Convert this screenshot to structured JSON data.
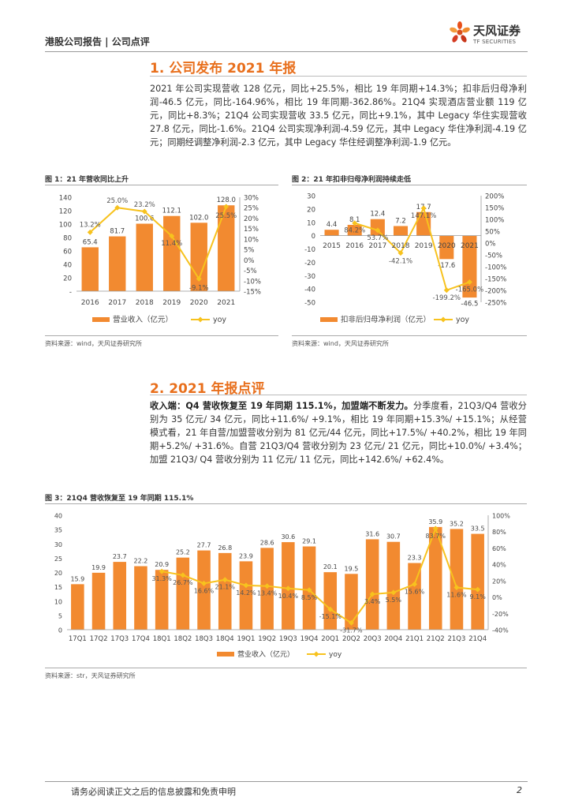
{
  "header": {
    "left": "港股公司报告 | 公司点评",
    "logo_cn": "天风证券",
    "logo_en": "TF SECURITIES"
  },
  "section1": {
    "title": "1. 公司发布 2021 年报",
    "body": "2021 年公司实现营收 128 亿元，同比+25.5%，相比 19 年同期+14.3%；扣非后归母净利润-46.5 亿元，同比-164.96%，相比 19 年同期-362.86%。21Q4 实现酒店营业额 119 亿元，同比+8.3%；21Q4 公司实现营收 33.5 亿元，同比+9.1%，其中 Legacy 华住实现营收 27.8 亿元，同比-1.6%。21Q4 公司实现净利润-4.59 亿元，其中 Legacy 华住净利润-4.19 亿元；同期经调整净利润-2.3 亿元，其中 Legacy 华住经调整净利润-1.9 亿元。"
  },
  "figure1": {
    "title": "图 1：21 年营收同比上升",
    "source": "资料来源：wind，天风证券研究所"
  },
  "figure2": {
    "title": "图 2：21 年扣非归母净利润持续走低",
    "source": "资料来源：wind，天风证券研究所"
  },
  "section2": {
    "title": "2. 2021 年报点评",
    "lead": "收入端：Q4 营收恢复至 19 年同期 115.1%，加盟端不断发力。",
    "body": "分季度看，21Q3/Q4 营收分别为 35 亿元/ 34 亿元，同比+11.6%/ +9.1%，相比 19 年同期+15.3%/ +15.1%；从经营模式看，21 年自营/加盟营收分别为 81 亿元/44 亿元，同比+17.5%/ +40.2%，相比 19 年同期+5.2%/ +31.6%。自营 21Q3/Q4 营收分别为 23 亿元/ 21 亿元，同比+10.0%/ +3.4%；加盟 21Q3/ Q4 营收分别为 11 亿元/ 11 亿元，同比+142.6%/ +62.4%。"
  },
  "figure3": {
    "title": "图 3：21Q4 营收恢复至 19 年同期 115.1%",
    "source": "资料来源：str，天风证券研究所"
  },
  "footer": {
    "disclaimer": "请务必阅读正文之后的信息披露和免责申明",
    "page": "2"
  },
  "colors": {
    "orange": "#f28a30",
    "yellow": "#f7c21e",
    "title_orange": "#e86f1c"
  },
  "chart_data": [
    {
      "type": "bar",
      "name": "revenue-annual",
      "categories": [
        "2016",
        "2017",
        "2018",
        "2019",
        "2020",
        "2021"
      ],
      "series": [
        {
          "name": "营业收入（亿元）",
          "kind": "bar",
          "axis": "left",
          "values": [
            65.4,
            81.7,
            100.6,
            112.1,
            102.0,
            128.0
          ]
        },
        {
          "name": "yoy",
          "kind": "line",
          "axis": "right",
          "values": [
            13.2,
            25.0,
            23.2,
            11.4,
            -9.1,
            25.5
          ]
        }
      ],
      "value_labels": [
        "65.4",
        "81.7",
        "100.6",
        "112.1",
        "102.0",
        "128.0"
      ],
      "line_labels": [
        "13.2%",
        "25.0%",
        "23.2%",
        "11.4%",
        "-9.1%",
        "25.5%"
      ],
      "ylim_left": [
        0,
        140
      ],
      "ylim_right": [
        -15,
        30
      ],
      "yticks_left": [
        "140",
        "120",
        "100",
        "80",
        "60",
        "40",
        "20",
        "-"
      ],
      "yticks_right": [
        "30%",
        "25%",
        "20%",
        "15%",
        "10%",
        "5%",
        "0%",
        "-5%",
        "-10%",
        "-15%"
      ]
    },
    {
      "type": "bar",
      "name": "net-profit-annual",
      "categories": [
        "2015",
        "2016",
        "2017",
        "2018",
        "2019",
        "2020",
        "2021"
      ],
      "series": [
        {
          "name": "扣非后归母净利润（亿元）",
          "kind": "bar",
          "axis": "left",
          "values": [
            4.4,
            8.1,
            12.4,
            7.2,
            17.7,
            -17.6,
            -46.5
          ]
        },
        {
          "name": "yoy",
          "kind": "line",
          "axis": "right",
          "values": [
            null,
            84.2,
            53.7,
            -42.1,
            147.1,
            -199.2,
            -165.0
          ]
        }
      ],
      "value_labels": [
        "4.4",
        "8.1",
        "12.4",
        "7.2",
        "17.7",
        "-17.6",
        "-46.5"
      ],
      "line_labels": [
        "",
        "84.2%",
        "53.7%",
        "-42.1%",
        "147.1%",
        "-199.2%",
        "-165.0%"
      ],
      "ylim_left": [
        -50,
        30
      ],
      "ylim_right": [
        -250,
        200
      ],
      "yticks_left": [
        "30",
        "20",
        "10",
        "0",
        "-10",
        "-20",
        "-30",
        "-40",
        "-50"
      ],
      "yticks_right": [
        "200%",
        "150%",
        "100%",
        "50%",
        "0%",
        "-50%",
        "-100%",
        "-150%",
        "-200%",
        "-250%"
      ]
    },
    {
      "type": "bar",
      "name": "revenue-quarterly",
      "categories": [
        "17Q1",
        "17Q2",
        "17Q3",
        "17Q4",
        "18Q1",
        "18Q2",
        "18Q3",
        "18Q4",
        "19Q1",
        "19Q2",
        "19Q3",
        "19Q4",
        "20Q1",
        "20Q2",
        "20Q3",
        "20Q4",
        "21Q1",
        "21Q2",
        "21Q3",
        "21Q4"
      ],
      "series": [
        {
          "name": "营业收入（亿元）",
          "kind": "bar",
          "axis": "left",
          "values": [
            15.9,
            19.9,
            23.7,
            22.2,
            20.9,
            25.2,
            27.7,
            26.8,
            23.9,
            28.6,
            30.6,
            29.1,
            20.1,
            19.5,
            31.6,
            30.7,
            23.3,
            35.9,
            35.2,
            33.5
          ]
        },
        {
          "name": "yoy",
          "kind": "line",
          "axis": "right",
          "values": [
            null,
            null,
            null,
            null,
            31.3,
            26.7,
            16.6,
            21.1,
            14.2,
            13.4,
            10.4,
            8.5,
            -15.1,
            -31.7,
            3.4,
            5.5,
            15.6,
            83.7,
            11.6,
            9.1
          ]
        }
      ],
      "value_labels": [
        "15.9",
        "19.9",
        "23.7",
        "22.2",
        "20.9",
        "25.2",
        "27.7",
        "26.8",
        "23.9",
        "28.6",
        "30.6",
        "29.1",
        "20.1",
        "19.5",
        "31.6",
        "30.7",
        "23.3",
        "35.9",
        "35.2",
        "33.5"
      ],
      "line_labels": [
        "",
        "",
        "",
        "",
        "31.3%",
        "26.7%",
        "16.6%",
        "21.1%",
        "14.2%",
        "13.4%",
        "10.4%",
        "8.5%",
        "-15.1%",
        "-31.7%",
        "3.4%",
        "5.5%",
        "15.6%",
        "83.7%",
        "11.6%",
        "9.1%"
      ],
      "ylim_left": [
        0,
        40
      ],
      "ylim_right": [
        -40,
        100
      ],
      "yticks_left": [
        "40",
        "35",
        "30",
        "25",
        "20",
        "15",
        "10",
        "5",
        "0"
      ],
      "yticks_right": [
        "100%",
        "80%",
        "60%",
        "40%",
        "20%",
        "0%",
        "-20%",
        "-40%"
      ]
    }
  ]
}
